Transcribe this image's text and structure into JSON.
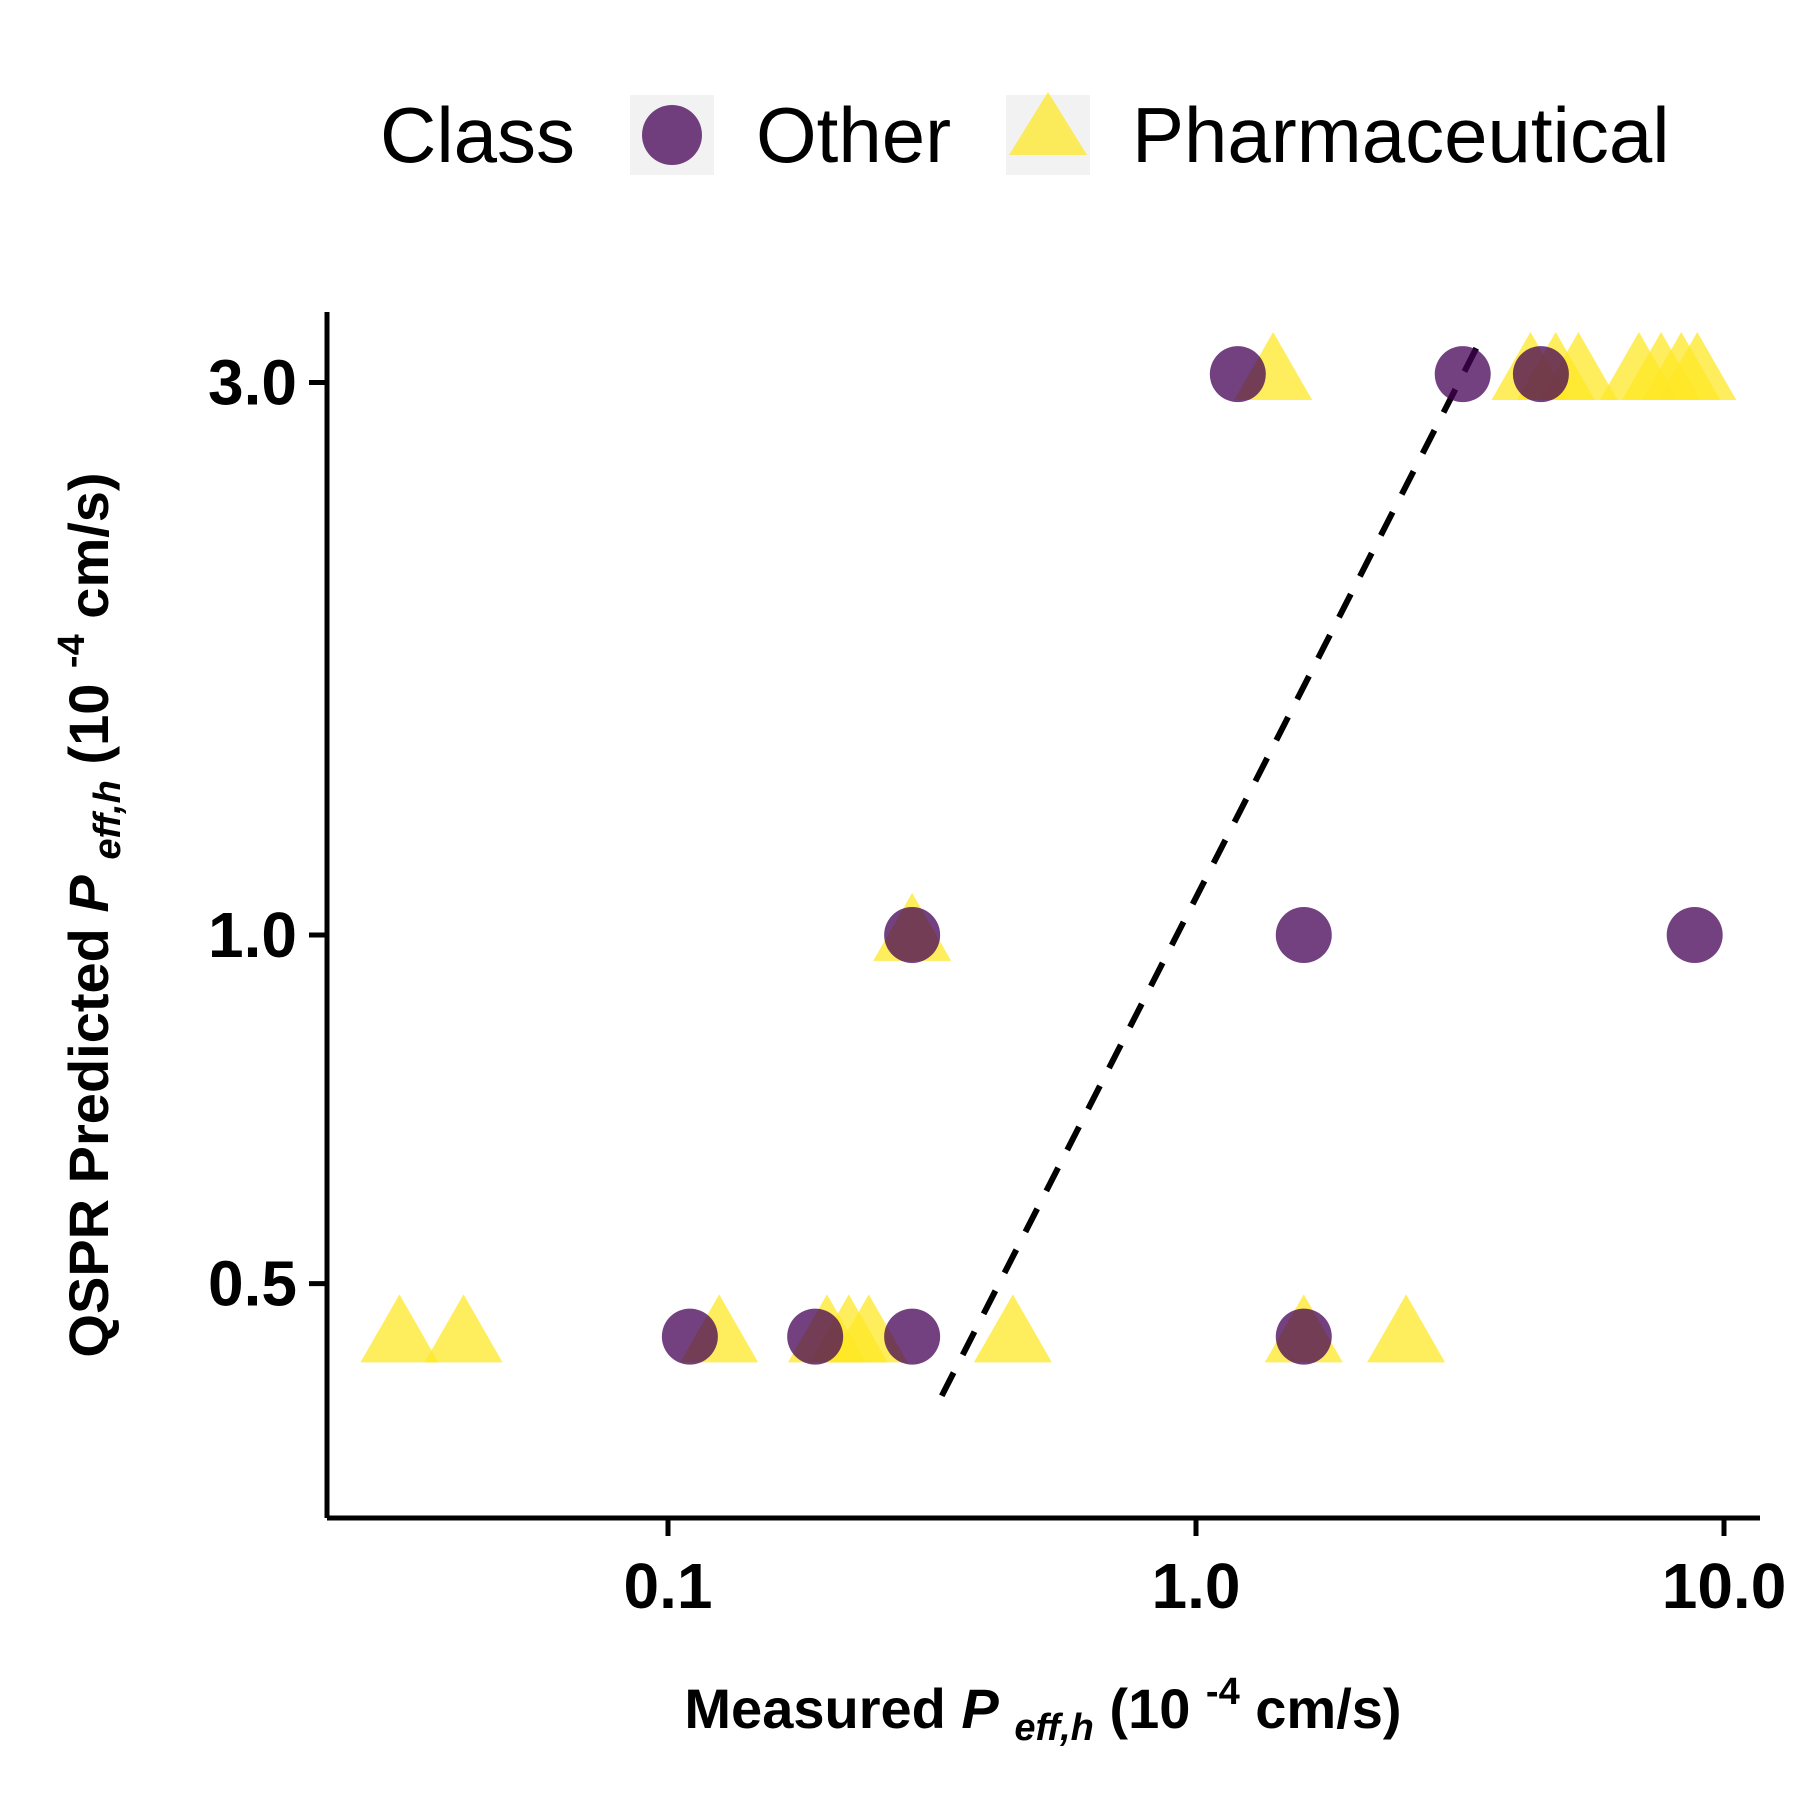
{
  "chart_data": {
    "type": "scatter",
    "x_scale": "log",
    "y_scale": "log",
    "xlim": [
      0.025,
      12
    ],
    "ylim": [
      0.4,
      3.5
    ],
    "x_ticks": [
      0.1,
      1.0,
      10.0
    ],
    "x_tick_labels": [
      "0.1",
      "1.0",
      "10.0"
    ],
    "y_ticks": [
      0.5,
      1.0,
      3.0
    ],
    "y_tick_labels": [
      "0.5",
      "1.0",
      "3.0"
    ],
    "xlabel": {
      "prefix": "Measured ",
      "var": "P",
      "sub": "eff,h",
      "unit_open": " (10",
      "exp": "-4",
      "unit_close": " cm/s)"
    },
    "ylabel": {
      "prefix": "QSPR Predicted ",
      "var": "P",
      "sub": "eff,h",
      "unit_open": " (10",
      "exp": "-4",
      "unit_close": " cm/s)"
    },
    "legend": {
      "title": "Class",
      "position": "top",
      "entries": [
        {
          "label": "Other",
          "shape": "circle",
          "color": "#440154"
        },
        {
          "label": "Pharmaceutical",
          "shape": "triangle",
          "color": "#FDE725"
        }
      ]
    },
    "reference_line": {
      "style": "dashed",
      "color": "#000000",
      "points": [
        [
          0.33,
          0.4
        ],
        [
          3.5,
          3.3
        ]
      ]
    },
    "grid": false,
    "series": [
      {
        "name": "Other",
        "shape": "circle",
        "color": "#440154",
        "opacity": 0.75,
        "points": [
          {
            "x": 1.2,
            "y": 3.05
          },
          {
            "x": 3.2,
            "y": 3.05
          },
          {
            "x": 4.5,
            "y": 3.05
          },
          {
            "x": 0.29,
            "y": 1.0
          },
          {
            "x": 1.6,
            "y": 1.0
          },
          {
            "x": 8.8,
            "y": 1.0
          },
          {
            "x": 0.11,
            "y": 0.45
          },
          {
            "x": 0.19,
            "y": 0.45
          },
          {
            "x": 0.29,
            "y": 0.45
          },
          {
            "x": 1.6,
            "y": 0.45
          }
        ]
      },
      {
        "name": "Pharmaceutical",
        "shape": "triangle",
        "color": "#FDE725",
        "opacity": 0.75,
        "points": [
          {
            "x": 1.4,
            "y": 3.05
          },
          {
            "x": 4.3,
            "y": 3.05
          },
          {
            "x": 4.8,
            "y": 3.05
          },
          {
            "x": 5.3,
            "y": 3.05
          },
          {
            "x": 6.9,
            "y": 3.05
          },
          {
            "x": 7.6,
            "y": 3.05
          },
          {
            "x": 8.3,
            "y": 3.05
          },
          {
            "x": 8.9,
            "y": 3.05
          },
          {
            "x": 0.29,
            "y": 1.0
          },
          {
            "x": 0.031,
            "y": 0.45
          },
          {
            "x": 0.041,
            "y": 0.45
          },
          {
            "x": 0.125,
            "y": 0.45
          },
          {
            "x": 0.2,
            "y": 0.45
          },
          {
            "x": 0.22,
            "y": 0.45
          },
          {
            "x": 0.24,
            "y": 0.45
          },
          {
            "x": 0.45,
            "y": 0.45
          },
          {
            "x": 1.6,
            "y": 0.45
          },
          {
            "x": 2.5,
            "y": 0.45
          }
        ]
      }
    ]
  }
}
